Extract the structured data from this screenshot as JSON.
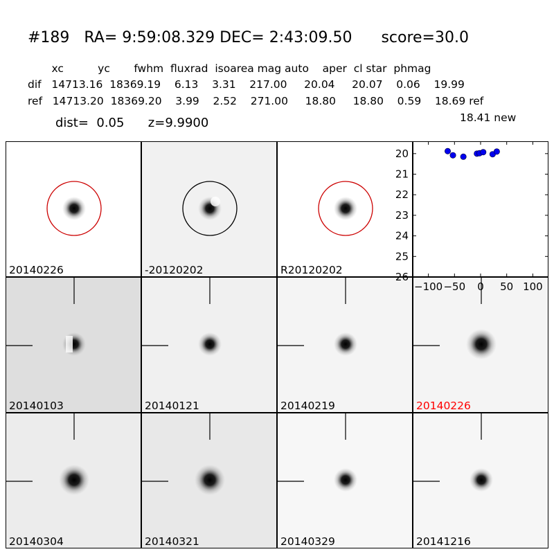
{
  "header": {
    "title": "#189   RA= 9:59:08.329 DEC= 2:43:09.50      score=30.0",
    "col_headers": "       xc          yc       fwhm  fluxrad  isoarea mag auto    aper  cl star  phmag",
    "row_dif": "dif   14713.16  18369.19    6.13    3.31    217.00     20.04     20.07    0.06    19.99",
    "row_ref": "ref   14713.20  18369.20    3.99    2.52    271.00     18.80     18.80    0.59    18.69 ref",
    "row_new": "18.41 new",
    "dist_line": "dist=  0.05      z=9.9900"
  },
  "panels": [
    {
      "label": "20140226",
      "bg": "#ffffff",
      "circle": "#cc0000",
      "marker": false,
      "label_color": "#000000",
      "blob": "normal"
    },
    {
      "label": "-20120202",
      "bg": "#f1f1f1",
      "circle": "#000000",
      "marker": false,
      "label_color": "#000000",
      "blob": "dipole"
    },
    {
      "label": "R20120202",
      "bg": "#ffffff",
      "circle": "#cc0000",
      "marker": false,
      "label_color": "#000000",
      "blob": "normal"
    },
    {
      "label": "20140103",
      "bg": "#dedede",
      "circle": "",
      "marker": true,
      "label_color": "#000000",
      "blob": "split"
    },
    {
      "label": "20140121",
      "bg": "#f0f0f0",
      "circle": "",
      "marker": true,
      "label_color": "#000000",
      "blob": "normal"
    },
    {
      "label": "20140219",
      "bg": "#f4f4f4",
      "circle": "",
      "marker": true,
      "label_color": "#000000",
      "blob": "normal"
    },
    {
      "label": "20140226",
      "bg": "#f4f4f4",
      "circle": "",
      "marker": true,
      "label_color": "#ff0000",
      "blob": "big"
    },
    {
      "label": "20140304",
      "bg": "#ececec",
      "circle": "",
      "marker": true,
      "label_color": "#000000",
      "blob": "big"
    },
    {
      "label": "20140321",
      "bg": "#e8e8e8",
      "circle": "",
      "marker": true,
      "label_color": "#000000",
      "blob": "big"
    },
    {
      "label": "20140329",
      "bg": "#f7f7f7",
      "circle": "",
      "marker": true,
      "label_color": "#000000",
      "blob": "normal"
    },
    {
      "label": "20141216",
      "bg": "#f6f6f6",
      "circle": "",
      "marker": true,
      "label_color": "#000000",
      "blob": "normal"
    }
  ],
  "chart_data": {
    "type": "scatter",
    "xlim": [
      -130,
      130
    ],
    "ylim": [
      26,
      19.4
    ],
    "y_inverted": true,
    "xticks": [
      -100,
      -50,
      0,
      50,
      100
    ],
    "xtick_labels": [
      "−100",
      "−50",
      "0",
      "50",
      "100"
    ],
    "yticks": [
      20,
      21,
      22,
      23,
      24,
      25,
      26
    ],
    "ytick_labels": [
      "20",
      "21",
      "22",
      "23",
      "24",
      "25",
      "26"
    ],
    "marker_color": "#0000ee",
    "points": [
      {
        "x": -63,
        "y": 19.88
      },
      {
        "x": -53,
        "y": 20.08
      },
      {
        "x": -33,
        "y": 20.15
      },
      {
        "x": -7,
        "y": 20.0
      },
      {
        "x": -2,
        "y": 19.98
      },
      {
        "x": 5,
        "y": 19.93
      },
      {
        "x": 23,
        "y": 20.03
      },
      {
        "x": 31,
        "y": 19.9
      }
    ]
  }
}
